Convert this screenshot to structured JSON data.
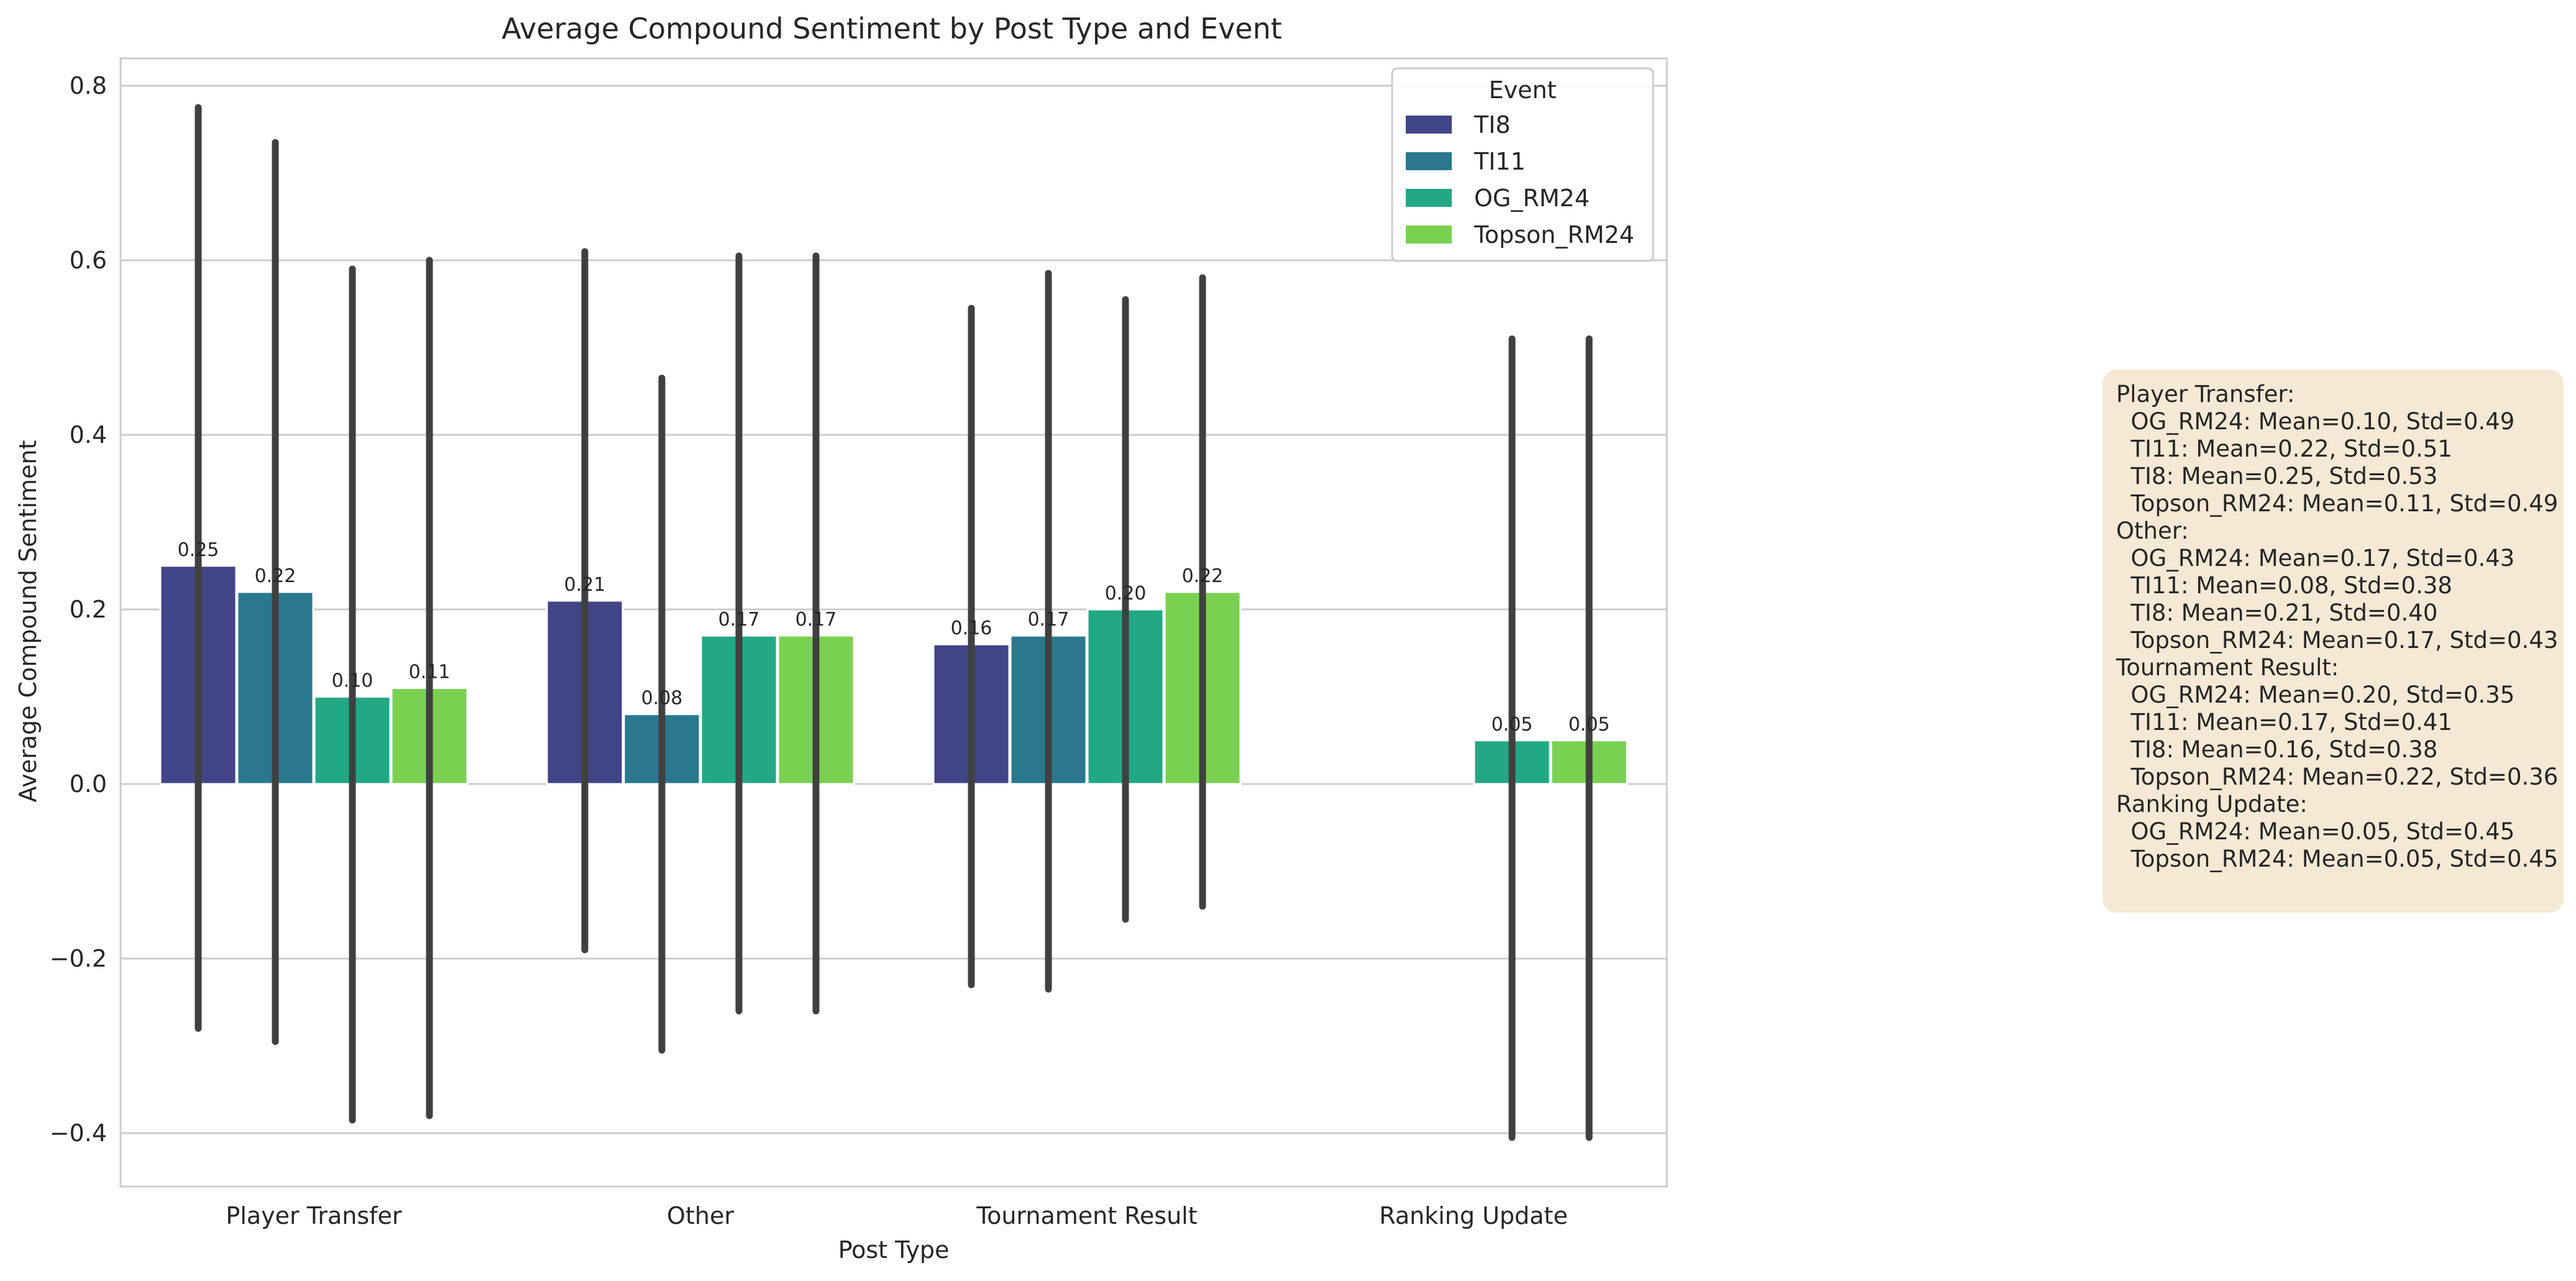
{
  "chart_data": {
    "type": "bar",
    "title": "Average Compound Sentiment by Post Type and Event",
    "xlabel": "Post Type",
    "ylabel": "Average Compound Sentiment",
    "ylim": [
      -0.46,
      0.835
    ],
    "yticks": [
      -0.4,
      -0.2,
      0.0,
      0.2,
      0.4,
      0.6,
      0.8
    ],
    "ytick_labels": [
      "−0.4",
      "−0.2",
      "0.0",
      "0.2",
      "0.4",
      "0.6",
      "0.8"
    ],
    "grid": true,
    "legend": {
      "title": "Event",
      "placement": "top-right"
    },
    "categories": [
      "Player Transfer",
      "Other",
      "Tournament Result",
      "Ranking Update"
    ],
    "series": [
      {
        "name": "TI8",
        "color": "#414487",
        "values": [
          0.25,
          0.21,
          0.16,
          null
        ],
        "value_labels": [
          "0.25",
          "0.21",
          "0.16",
          null
        ],
        "ci_low": [
          -0.28,
          -0.19,
          -0.23,
          null
        ],
        "ci_high": [
          0.775,
          0.61,
          0.545,
          null
        ]
      },
      {
        "name": "TI11",
        "color": "#2a788e",
        "values": [
          0.22,
          0.08,
          0.17,
          null
        ],
        "value_labels": [
          "0.22",
          "0.08",
          "0.17",
          null
        ],
        "ci_low": [
          -0.295,
          -0.305,
          -0.235,
          null
        ],
        "ci_high": [
          0.735,
          0.465,
          0.585,
          null
        ]
      },
      {
        "name": "OG_RM24",
        "color": "#22a884",
        "values": [
          0.1,
          0.17,
          0.2,
          0.05
        ],
        "value_labels": [
          "0.10",
          "0.17",
          "0.20",
          "0.05"
        ],
        "ci_low": [
          -0.385,
          -0.26,
          -0.155,
          -0.405
        ],
        "ci_high": [
          0.59,
          0.605,
          0.555,
          0.51
        ]
      },
      {
        "name": "Topson_RM24",
        "color": "#7ad151",
        "values": [
          0.11,
          0.17,
          0.22,
          0.05
        ],
        "value_labels": [
          "0.11",
          "0.17",
          "0.22",
          "0.05"
        ],
        "ci_low": [
          -0.38,
          -0.26,
          -0.14,
          -0.405
        ],
        "ci_high": [
          0.6,
          0.605,
          0.58,
          0.51
        ]
      }
    ]
  },
  "stats_box": {
    "lines": [
      "Player Transfer:",
      "  OG_RM24: Mean=0.10, Std=0.49",
      "  TI11: Mean=0.22, Std=0.51",
      "  TI8: Mean=0.25, Std=0.53",
      "  Topson_RM24: Mean=0.11, Std=0.49",
      "Other:",
      "  OG_RM24: Mean=0.17, Std=0.43",
      "  TI11: Mean=0.08, Std=0.38",
      "  TI8: Mean=0.21, Std=0.40",
      "  Topson_RM24: Mean=0.17, Std=0.43",
      "Tournament Result:",
      "  OG_RM24: Mean=0.20, Std=0.35",
      "  TI11: Mean=0.17, Std=0.41",
      "  TI8: Mean=0.16, Std=0.38",
      "  Topson_RM24: Mean=0.22, Std=0.36",
      "Ranking Update:",
      "  OG_RM24: Mean=0.05, Std=0.45",
      "  Topson_RM24: Mean=0.05, Std=0.45"
    ],
    "background": "#f5e9d5"
  }
}
